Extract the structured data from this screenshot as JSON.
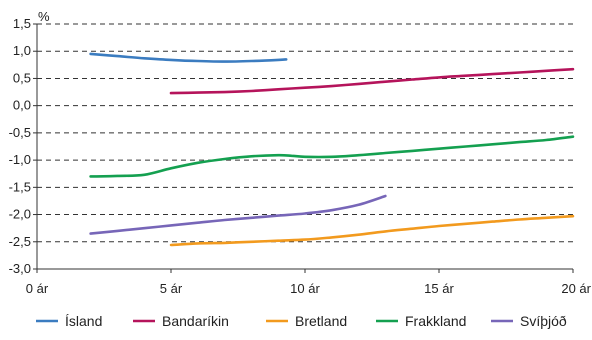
{
  "chart_data": {
    "type": "line",
    "unit_label": "%",
    "xlim": [
      0,
      20
    ],
    "ylim": [
      -3.0,
      1.5
    ],
    "x_ticks": [
      0,
      5,
      10,
      15,
      20
    ],
    "x_tick_labels": [
      "0 ár",
      "5 ár",
      "10 ár",
      "15 ár",
      "20 ár"
    ],
    "y_ticks": [
      1.5,
      1.0,
      0.5,
      0.0,
      -0.5,
      -1.0,
      -1.5,
      -2.0,
      -2.5,
      -3.0
    ],
    "y_tick_labels": [
      "1,5",
      "1,0",
      "0,5",
      "0,0",
      "-0,5",
      "-1,0",
      "-1,5",
      "-2,0",
      "-2,5",
      "-3,0"
    ],
    "grid": "horizontal-dashed",
    "legend_position": "bottom",
    "series": [
      {
        "name": "Ísland",
        "color": "#3b7cc0",
        "points": [
          [
            2,
            0.95
          ],
          [
            3,
            0.91
          ],
          [
            4,
            0.87
          ],
          [
            5,
            0.84
          ],
          [
            6,
            0.82
          ],
          [
            7,
            0.81
          ],
          [
            8,
            0.82
          ],
          [
            9,
            0.84
          ],
          [
            9.3,
            0.85
          ]
        ]
      },
      {
        "name": "Bandaríkin",
        "color": "#b5145b",
        "points": [
          [
            5,
            0.23
          ],
          [
            6,
            0.24
          ],
          [
            7,
            0.25
          ],
          [
            8,
            0.27
          ],
          [
            9,
            0.3
          ],
          [
            10,
            0.33
          ],
          [
            11,
            0.36
          ],
          [
            12,
            0.4
          ],
          [
            13,
            0.44
          ],
          [
            14,
            0.48
          ],
          [
            15,
            0.52
          ],
          [
            16,
            0.55
          ],
          [
            17,
            0.58
          ],
          [
            18,
            0.61
          ],
          [
            19,
            0.64
          ],
          [
            20,
            0.67
          ]
        ]
      },
      {
        "name": "Bretland",
        "color": "#f29a1e",
        "points": [
          [
            5,
            -2.56
          ],
          [
            6,
            -2.53
          ],
          [
            7,
            -2.52
          ],
          [
            8,
            -2.5
          ],
          [
            9,
            -2.48
          ],
          [
            10,
            -2.46
          ],
          [
            11,
            -2.42
          ],
          [
            12,
            -2.37
          ],
          [
            13,
            -2.31
          ],
          [
            14,
            -2.26
          ],
          [
            15,
            -2.21
          ],
          [
            16,
            -2.17
          ],
          [
            17,
            -2.13
          ],
          [
            18,
            -2.09
          ],
          [
            19,
            -2.06
          ],
          [
            20,
            -2.03
          ]
        ]
      },
      {
        "name": "Frakkland",
        "color": "#14a050",
        "points": [
          [
            2,
            -1.3
          ],
          [
            3,
            -1.29
          ],
          [
            4,
            -1.27
          ],
          [
            5,
            -1.15
          ],
          [
            6,
            -1.05
          ],
          [
            7,
            -0.98
          ],
          [
            8,
            -0.93
          ],
          [
            9,
            -0.91
          ],
          [
            9.5,
            -0.92
          ],
          [
            10,
            -0.94
          ],
          [
            11,
            -0.94
          ],
          [
            12,
            -0.91
          ],
          [
            13,
            -0.87
          ],
          [
            14,
            -0.83
          ],
          [
            15,
            -0.79
          ],
          [
            16,
            -0.75
          ],
          [
            17,
            -0.71
          ],
          [
            18,
            -0.67
          ],
          [
            19,
            -0.63
          ],
          [
            20,
            -0.57
          ]
        ]
      },
      {
        "name": "Svíþjóð",
        "color": "#7766b8",
        "points": [
          [
            2,
            -2.35
          ],
          [
            3,
            -2.3
          ],
          [
            4,
            -2.25
          ],
          [
            5,
            -2.2
          ],
          [
            6,
            -2.15
          ],
          [
            7,
            -2.1
          ],
          [
            8,
            -2.06
          ],
          [
            9,
            -2.02
          ],
          [
            10,
            -1.98
          ],
          [
            11,
            -1.92
          ],
          [
            12,
            -1.82
          ],
          [
            13,
            -1.66
          ]
        ]
      }
    ]
  }
}
